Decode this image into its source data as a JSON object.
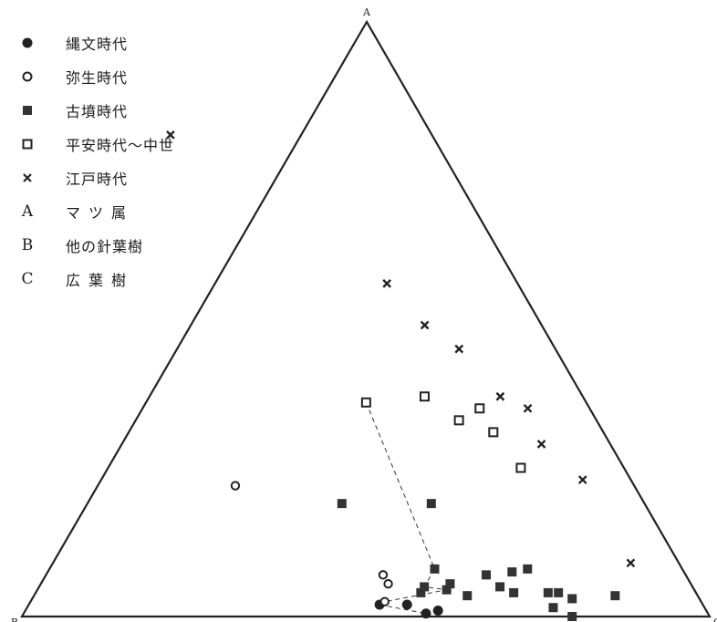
{
  "chart_data": {
    "type": "scatter",
    "plot": "ternary",
    "vertices": {
      "top": "A",
      "left": "B",
      "right": "C"
    },
    "legend": [
      {
        "marker": "filled-circle",
        "label": "縄文時代"
      },
      {
        "marker": "open-circle",
        "label": "弥生時代"
      },
      {
        "marker": "filled-square",
        "label": "古墳時代"
      },
      {
        "marker": "open-square",
        "label": "平安時代〜中世"
      },
      {
        "marker": "cross",
        "label": "江戸時代"
      }
    ],
    "vertex_legend": [
      {
        "letter": "A",
        "label": "マツ属"
      },
      {
        "letter": "B",
        "label": "他の針葉樹"
      },
      {
        "letter": "C",
        "label": "広葉樹"
      }
    ],
    "series": [
      {
        "name": "縄文時代",
        "marker": "filled-circle",
        "points": [
          [
            0.02,
            0.47,
            0.51
          ],
          [
            0.02,
            0.43,
            0.55
          ],
          [
            0.005,
            0.41,
            0.585
          ],
          [
            0.01,
            0.39,
            0.6
          ]
        ]
      },
      {
        "name": "弥生時代",
        "marker": "open-circle",
        "points": [
          [
            0.22,
            0.58,
            0.2
          ],
          [
            0.07,
            0.44,
            0.49
          ],
          [
            0.055,
            0.44,
            0.505
          ],
          [
            0.025,
            0.46,
            0.515
          ]
        ]
      },
      {
        "name": "古墳時代",
        "marker": "filled-square",
        "points": [
          [
            0.19,
            0.44,
            0.37
          ],
          [
            0.19,
            0.31,
            0.5
          ],
          [
            0.08,
            0.36,
            0.56
          ],
          [
            0.05,
            0.39,
            0.56
          ],
          [
            0.04,
            0.4,
            0.56
          ],
          [
            0.045,
            0.36,
            0.595
          ],
          [
            0.035,
            0.335,
            0.63
          ],
          [
            0.07,
            0.29,
            0.64
          ],
          [
            0.05,
            0.28,
            0.67
          ],
          [
            0.04,
            0.265,
            0.695
          ],
          [
            0.015,
            0.22,
            0.765
          ],
          [
            0.04,
            0.215,
            0.745
          ],
          [
            0.04,
            0.2,
            0.76
          ],
          [
            0.03,
            0.185,
            0.785
          ],
          [
            0.0,
            0.2,
            0.8
          ],
          [
            0.035,
            0.12,
            0.845
          ],
          [
            0.075,
            0.25,
            0.675
          ],
          [
            0.08,
            0.225,
            0.695
          ],
          [
            0.055,
            0.35,
            0.595
          ]
        ]
      },
      {
        "name": "平安時代〜中世",
        "marker": "open-square",
        "points": [
          [
            0.36,
            0.32,
            0.32
          ],
          [
            0.37,
            0.23,
            0.4
          ],
          [
            0.35,
            0.16,
            0.49
          ],
          [
            0.31,
            0.16,
            0.53
          ],
          [
            0.25,
            0.15,
            0.6
          ],
          [
            0.33,
            0.2,
            0.47
          ]
        ]
      },
      {
        "name": "江戸時代",
        "marker": "cross",
        "points": [
          [
            0.81,
            0.38,
            -0.19
          ],
          [
            0.56,
            0.19,
            0.25
          ],
          [
            0.49,
            0.17,
            0.34
          ],
          [
            0.45,
            0.14,
            0.41
          ],
          [
            0.37,
            0.12,
            0.51
          ],
          [
            0.35,
            0.09,
            0.56
          ],
          [
            0.29,
            0.1,
            0.61
          ],
          [
            0.23,
            0.07,
            0.7
          ],
          [
            0.09,
            0.07,
            0.84
          ]
        ]
      }
    ],
    "connector_lines": [
      {
        "style": "dashed",
        "path": [
          [
            0.36,
            0.32,
            0.32
          ],
          [
            0.08,
            0.36,
            0.56
          ],
          [
            0.05,
            0.39,
            0.56
          ],
          [
            0.045,
            0.36,
            0.595
          ],
          [
            0.025,
            0.46,
            0.515
          ]
        ]
      },
      {
        "style": "dashed",
        "path": [
          [
            0.02,
            0.47,
            0.51
          ],
          [
            0.005,
            0.41,
            0.585
          ]
        ]
      }
    ],
    "grid": false
  }
}
